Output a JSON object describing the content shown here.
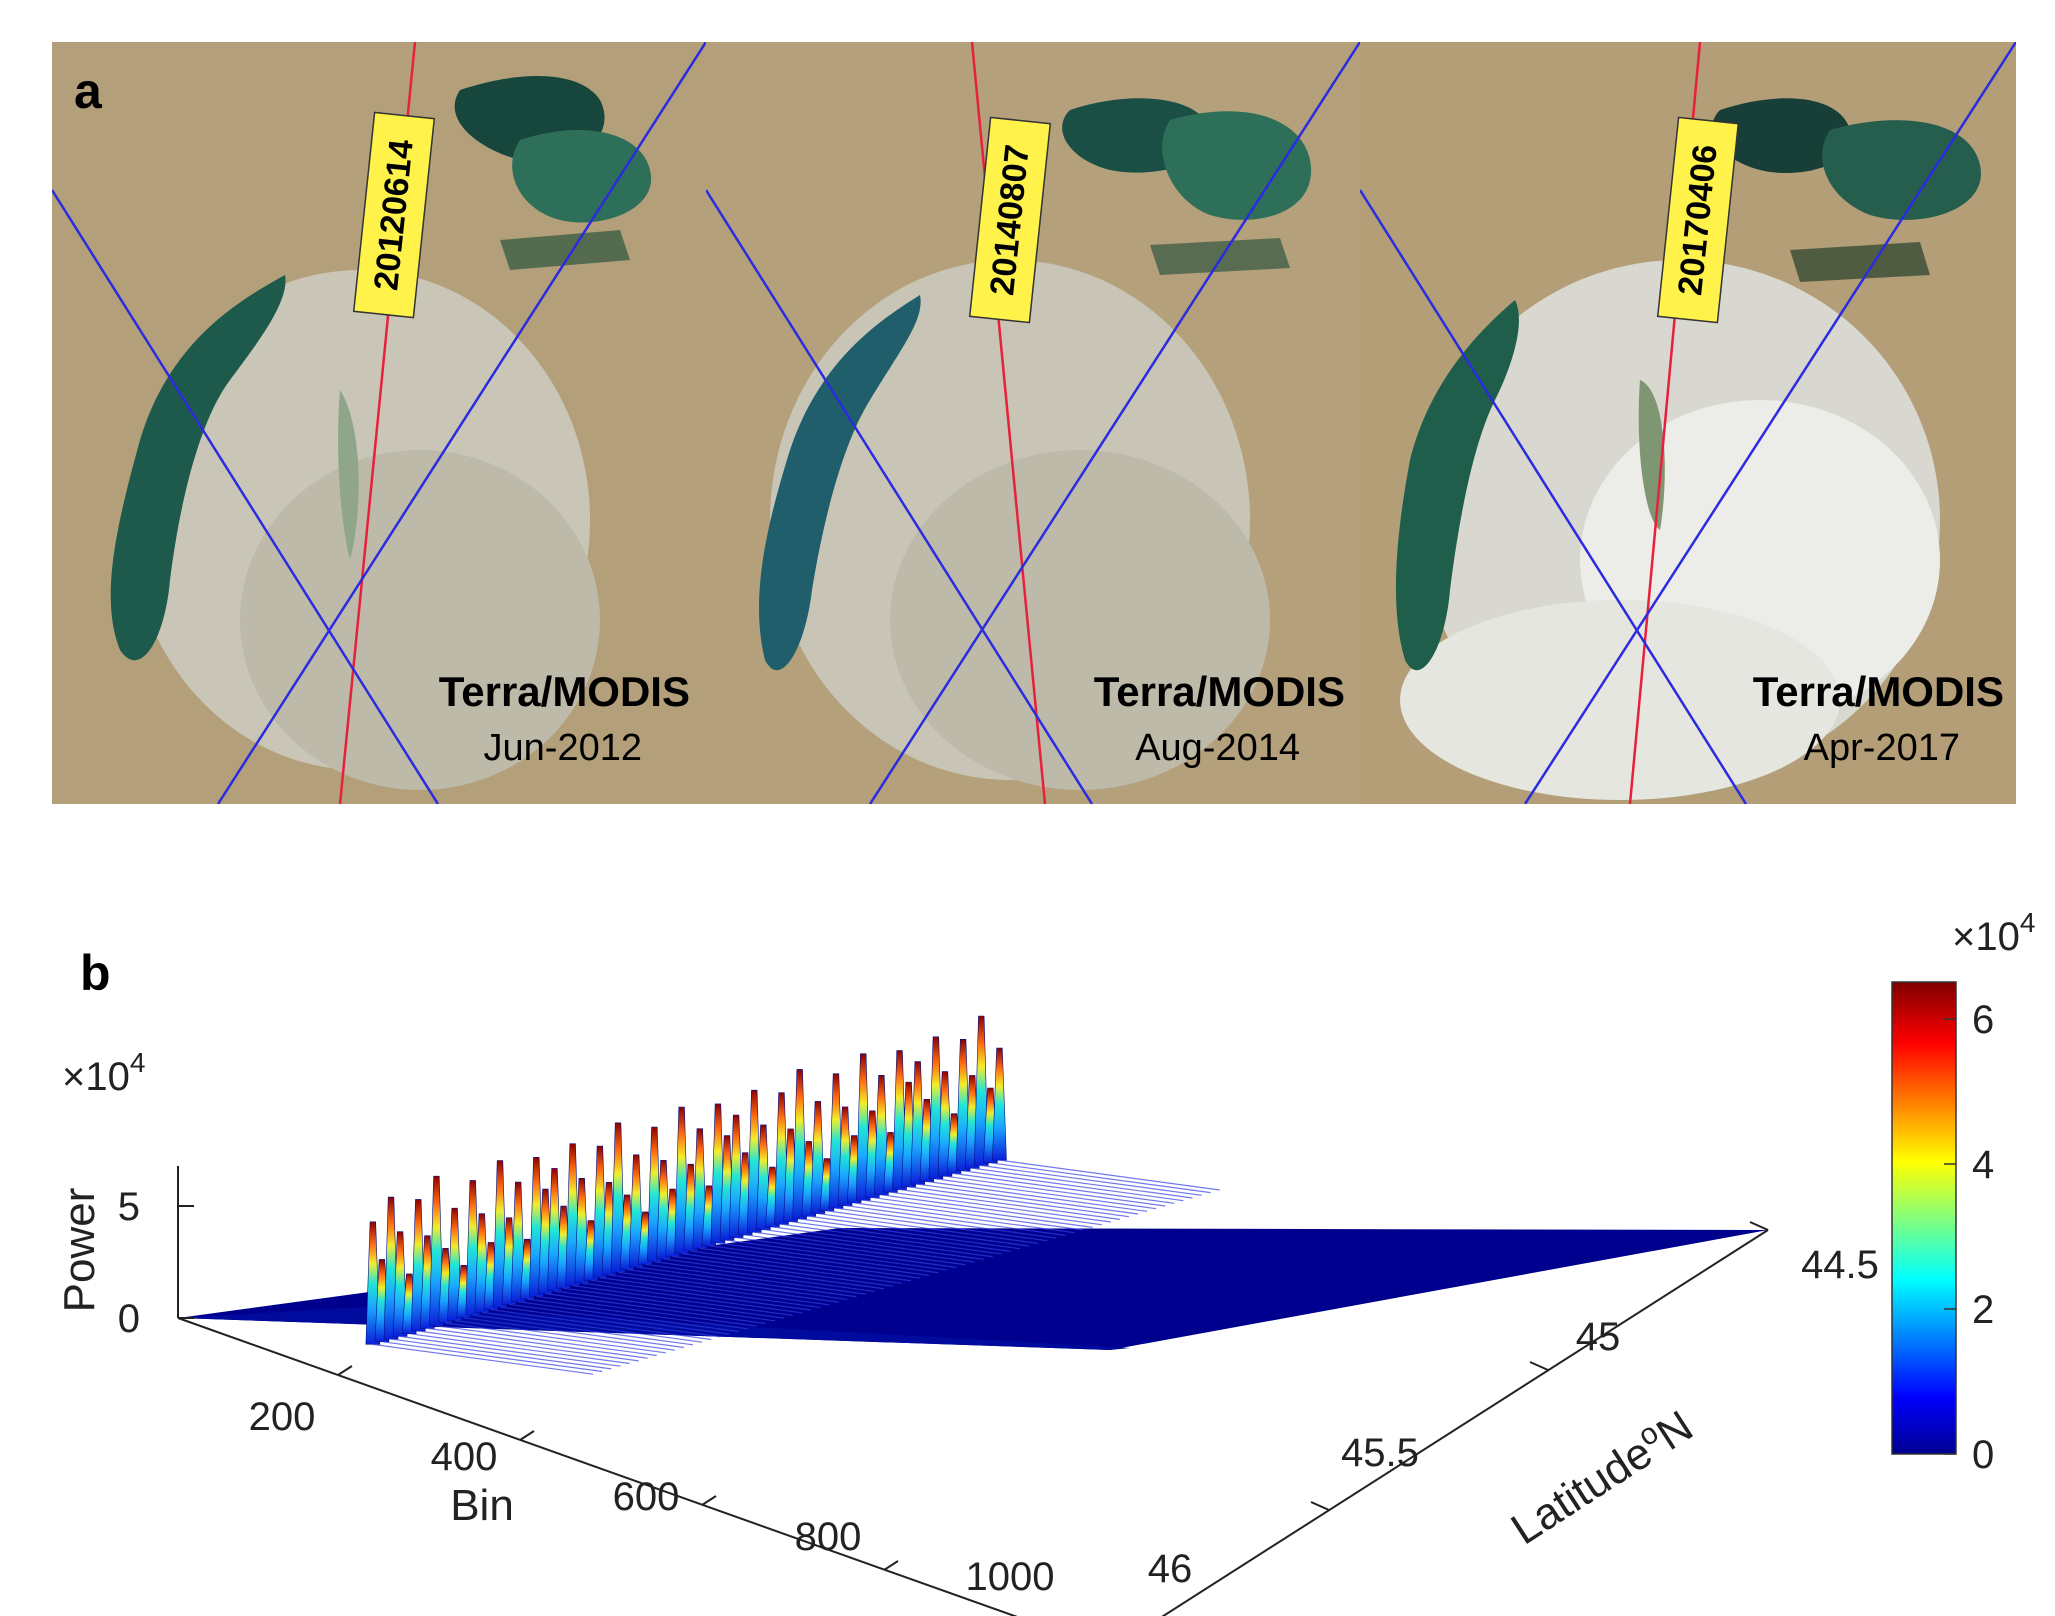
{
  "panel_a": {
    "label": "a",
    "panels": [
      {
        "date_tag": "20120614",
        "sensor": "Terra/MODIS",
        "date": "Jun-2012"
      },
      {
        "date_tag": "20140807",
        "sensor": "Terra/MODIS",
        "date": "Aug-2014"
      },
      {
        "date_tag": "20170406",
        "sensor": "Terra/MODIS",
        "date": "Apr-2017"
      }
    ],
    "colors": {
      "track_red": "#e8203c",
      "track_blue": "#2b2be0",
      "tag_bg": "#fff24a",
      "land": "#b19d77",
      "water": "#1e5a4c",
      "salt_flat": "#cfcfc4"
    }
  },
  "panel_b": {
    "label": "b",
    "chart_data": {
      "type": "surface",
      "xlabel": "Bin",
      "ylabel": "Latitude",
      "ylabel_sup": "o",
      "ylabel_suffix": "N",
      "zlabel": "Power",
      "z_exponent_label": "×10",
      "z_exponent_power": "4",
      "x_ticks": [
        "200",
        "400",
        "600",
        "800",
        "1000"
      ],
      "y_ticks": [
        "44.5",
        "45",
        "45.5",
        "46"
      ],
      "z_ticks": [
        "0",
        "5"
      ],
      "colorbar": {
        "ticks": [
          "0",
          "2",
          "4",
          "6"
        ],
        "exponent_label": "×10",
        "exponent_power": "4",
        "colormap": "jet",
        "range": [
          0,
          65000
        ]
      },
      "ridges": [
        {
          "bin_start": 230,
          "bin_end": 290,
          "lat_start": 46.0,
          "lat_end": 44.6,
          "peak_power": 65000
        }
      ]
    }
  }
}
